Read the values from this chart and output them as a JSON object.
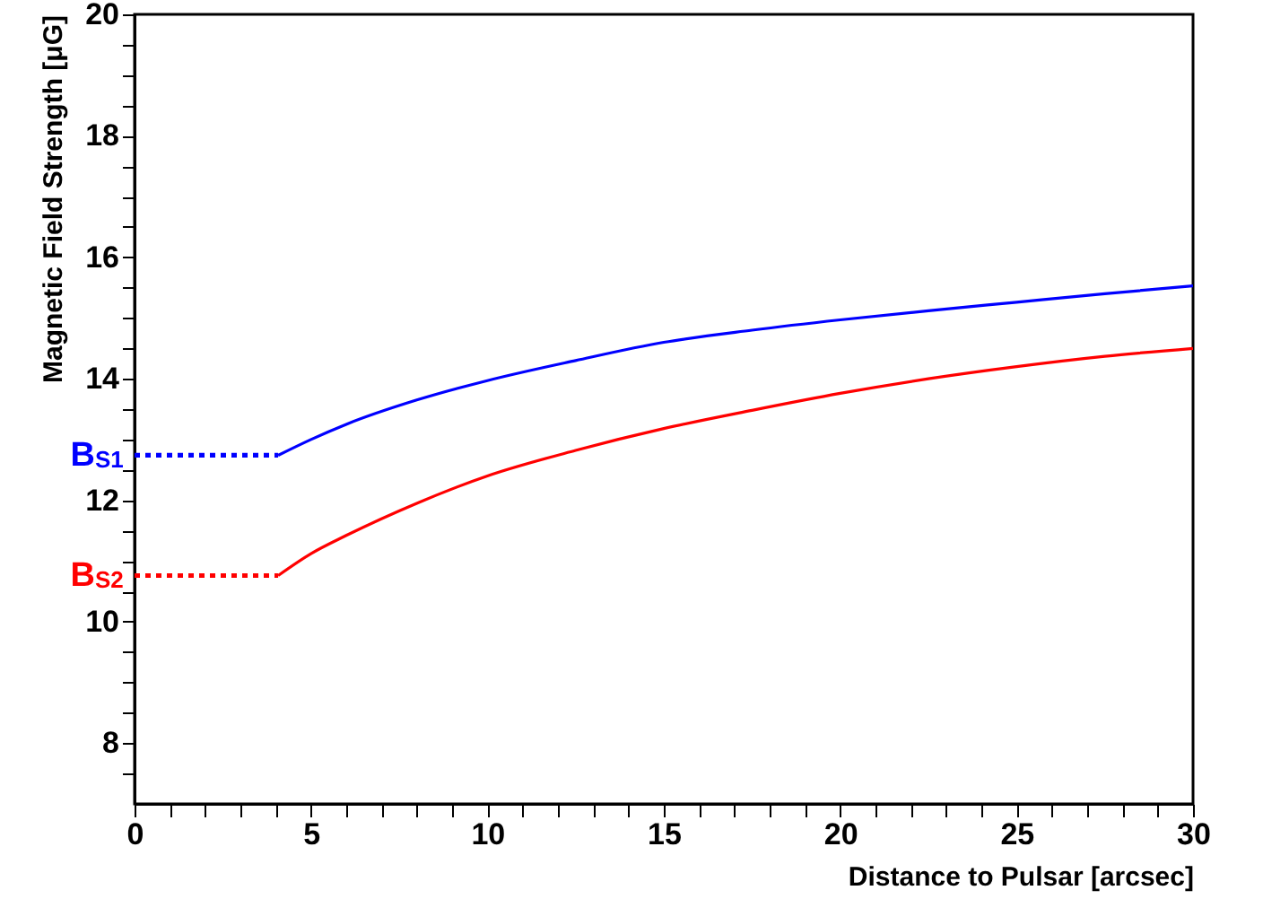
{
  "chart_data": {
    "type": "line",
    "xlabel": "Distance to Pulsar [arcsec]",
    "ylabel": "Magnetic Field Strength [μG]",
    "xlim": [
      0,
      30
    ],
    "ylim": [
      7,
      20
    ],
    "xticks": [
      0,
      {
        "value": 1,
        "label": null
      },
      {
        "value": 2,
        "label": null
      },
      {
        "value": 3,
        "label": null
      },
      {
        "value": 4,
        "label": null
      },
      5,
      {
        "value": 6,
        "label": null
      },
      {
        "value": 7,
        "label": null
      },
      {
        "value": 8,
        "label": null
      },
      {
        "value": 9,
        "label": null
      },
      10,
      {
        "value": 11,
        "label": null
      },
      {
        "value": 12,
        "label": null
      },
      {
        "value": 13,
        "label": null
      },
      {
        "value": 14,
        "label": null
      },
      15,
      {
        "value": 16,
        "label": null
      },
      {
        "value": 17,
        "label": null
      },
      {
        "value": 18,
        "label": null
      },
      {
        "value": 19,
        "label": null
      },
      20,
      {
        "value": 21,
        "label": null
      },
      {
        "value": 22,
        "label": null
      },
      {
        "value": 23,
        "label": null
      },
      {
        "value": 24,
        "label": null
      },
      25,
      {
        "value": 26,
        "label": null
      },
      {
        "value": 27,
        "label": null
      },
      {
        "value": 28,
        "label": null
      },
      {
        "value": 29,
        "label": null
      },
      30
    ],
    "yticks": [
      {
        "value": 7.5,
        "label": null
      },
      8,
      {
        "value": 8.5,
        "label": null
      },
      {
        "value": 9,
        "label": null
      },
      {
        "value": 9.5,
        "label": null
      },
      10,
      {
        "value": 10.5,
        "label": null
      },
      {
        "value": 11,
        "label": null
      },
      {
        "value": 11.5,
        "label": null
      },
      12,
      {
        "value": 12.5,
        "label": null
      },
      {
        "value": 13,
        "label": null
      },
      {
        "value": 13.5,
        "label": null
      },
      14,
      {
        "value": 14.5,
        "label": null
      },
      {
        "value": 15,
        "label": null
      },
      {
        "value": 15.5,
        "label": null
      },
      16,
      {
        "value": 16.5,
        "label": null
      },
      {
        "value": 17,
        "label": null
      },
      {
        "value": 17.5,
        "label": null
      },
      18,
      {
        "value": 18.5,
        "label": null
      },
      {
        "value": 19,
        "label": null
      },
      {
        "value": 19.5,
        "label": null
      },
      20
    ],
    "grid": false,
    "marker": "none",
    "series": [
      {
        "name": "B$_{S1}$",
        "color": "#0000ff",
        "line_style": "dotted",
        "x": [
          0,
          4.07
        ],
        "values": [
          12.74,
          12.74
        ]
      },
      {
        "color": "#0000ff",
        "line_style": "solid",
        "x": [
          4.07,
          5,
          6,
          8,
          10,
          12.5,
          15,
          17.5,
          20,
          22.5,
          25,
          27.5,
          30
        ],
        "values": [
          12.74,
          13.0,
          13.25,
          13.65,
          13.97,
          14.3,
          14.6,
          14.8,
          14.97,
          15.12,
          15.26,
          15.4,
          15.53
        ]
      },
      {
        "name": "B$_{S2}$",
        "color": "#ff0000",
        "line_style": "dotted",
        "x": [
          0,
          4.07
        ],
        "values": [
          10.76,
          10.76
        ]
      },
      {
        "color": "#ff0000",
        "line_style": "solid",
        "x": [
          4.07,
          5,
          6,
          8,
          10,
          12.5,
          15,
          17.5,
          20,
          22.5,
          25,
          27.5,
          30
        ],
        "values": [
          10.76,
          11.12,
          11.42,
          11.95,
          12.4,
          12.82,
          13.18,
          13.48,
          13.76,
          14.0,
          14.2,
          14.37,
          14.5
        ]
      }
    ]
  }
}
